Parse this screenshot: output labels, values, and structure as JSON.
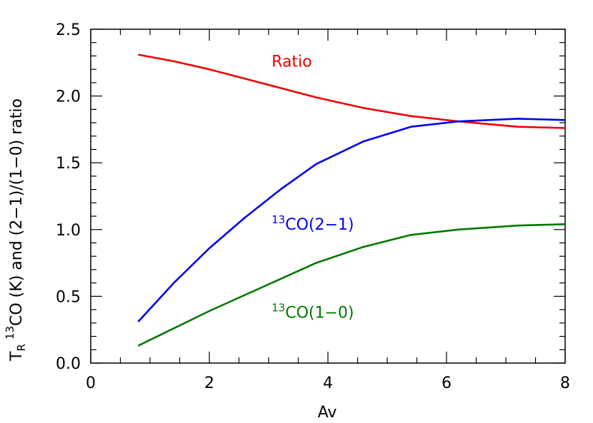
{
  "chart_data": {
    "type": "line",
    "title": "",
    "xlabel": "Av",
    "ylabel": {
      "t": "T",
      "sub": "R",
      "sup": "13",
      "rest": "CO (K) and (2−1)/(1−0) ratio"
    },
    "xlim": [
      0,
      8
    ],
    "ylim": [
      0,
      2.5
    ],
    "x_ticks": [
      0,
      2,
      4,
      6,
      8
    ],
    "y_ticks": [
      0.0,
      0.5,
      1.0,
      1.5,
      2.0,
      2.5
    ],
    "x_tick_labels": [
      "0",
      "2",
      "4",
      "6",
      "8"
    ],
    "y_tick_labels": [
      "0.0",
      "0.5",
      "1.0",
      "1.5",
      "2.0",
      "2.5"
    ],
    "grid": false,
    "series": [
      {
        "name": "Ratio",
        "label_parts": {
          "sup": "",
          "main": "Ratio"
        },
        "color": "#ee0000",
        "x": [
          0.8,
          1.4,
          2.0,
          2.6,
          3.2,
          3.8,
          4.6,
          5.4,
          6.2,
          7.2,
          8.0
        ],
        "y": [
          2.31,
          2.26,
          2.2,
          2.13,
          2.06,
          1.99,
          1.91,
          1.85,
          1.81,
          1.77,
          1.76
        ]
      },
      {
        "name": "13CO(2−1)",
        "label_parts": {
          "sup": "13",
          "main": "CO(2−1)"
        },
        "color": "#0000ee",
        "x": [
          0.8,
          1.4,
          2.0,
          2.6,
          3.2,
          3.8,
          4.6,
          5.4,
          6.2,
          7.2,
          8.0
        ],
        "y": [
          0.31,
          0.6,
          0.86,
          1.09,
          1.3,
          1.49,
          1.66,
          1.77,
          1.81,
          1.83,
          1.82
        ]
      },
      {
        "name": "13CO(1−0)",
        "label_parts": {
          "sup": "13",
          "main": "CO(1−0)"
        },
        "color": "#007700",
        "x": [
          0.8,
          1.4,
          2.0,
          2.6,
          3.2,
          3.8,
          4.6,
          5.4,
          6.2,
          7.2,
          8.0
        ],
        "y": [
          0.13,
          0.26,
          0.39,
          0.51,
          0.63,
          0.75,
          0.87,
          0.96,
          1.0,
          1.03,
          1.04
        ]
      }
    ]
  }
}
